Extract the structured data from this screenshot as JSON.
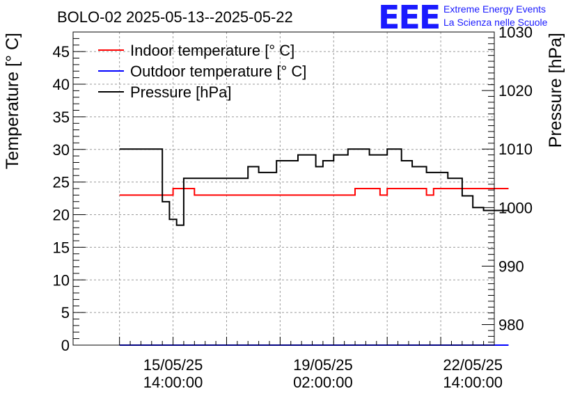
{
  "colors": {
    "background": "#ffffff",
    "indoor": "#ff0000",
    "outdoor": "#0000ff",
    "pressure": "#000000",
    "grid": "#9a9a9a",
    "logo": "#1a1aff"
  },
  "logo": {
    "mark": "EEE",
    "line1": "Extreme Energy Events",
    "line2": "La Scienza nelle Scuole"
  },
  "chart_data": {
    "type": "line",
    "title": "BOLO-02 2025-05-13--2025-05-22",
    "ylabel_left": "Temperature [° C]",
    "ylabel_right": "Pressure [hPa]",
    "xlabel": "",
    "grid": true,
    "legend_placement": "top-left",
    "ylim_left": [
      0,
      48
    ],
    "ylim_right": [
      976.5,
      1030
    ],
    "xlim": [
      "2025-05-13 06:00",
      "2025-05-23 02:00"
    ],
    "x_tick_positions": [
      "2025-05-14 08:00",
      "2025-05-15 14:00",
      "2025-05-16 20:00",
      "2025-05-18 02:00",
      "2025-05-19 08:00",
      "2025-05-20 14:00",
      "2025-05-21 20:00",
      "2025-05-23 02:00"
    ],
    "x_tick_labels": [
      {
        "at": "2025-05-15 14:00",
        "line1": "15/05/25",
        "line2": "14:00:00"
      },
      {
        "at": "2025-05-19 02:00",
        "line1": "19/05/25",
        "line2": "02:00:00"
      },
      {
        "at": "2025-05-22 14:00",
        "line1": "22/05/25",
        "line2": "14:00:00"
      }
    ],
    "y_left_ticks": [
      0,
      5,
      10,
      15,
      20,
      25,
      30,
      35,
      40,
      45
    ],
    "y_right_ticks": [
      980,
      990,
      1000,
      1010,
      1020,
      1030
    ],
    "series": [
      {
        "name": "Indoor temperature [° C]",
        "axis": "left",
        "color_key": "indoor",
        "step": true,
        "x": [
          "2025-05-14 08:00",
          "2025-05-15 14:00",
          "2025-05-16 02:00",
          "2025-05-18 20:00",
          "2025-05-19 08:00",
          "2025-05-19 20:00",
          "2025-05-20 10:00",
          "2025-05-20 14:00",
          "2025-05-21 12:00",
          "2025-05-21 16:00",
          "2025-05-23 10:00"
        ],
        "y": [
          23,
          24,
          23,
          23,
          23,
          24,
          23,
          24,
          23,
          24,
          24
        ]
      },
      {
        "name": "Outdoor temperature [° C]",
        "axis": "left",
        "color_key": "outdoor",
        "step": false,
        "x": [
          "2025-05-14 08:00",
          "2025-05-23 10:00"
        ],
        "y": [
          0,
          0
        ]
      },
      {
        "name": "Pressure [hPa]",
        "axis": "right",
        "color_key": "pressure",
        "step": true,
        "x": [
          "2025-05-14 08:00",
          "2025-05-15 08:00",
          "2025-05-15 12:00",
          "2025-05-15 16:00",
          "2025-05-15 20:00",
          "2025-05-16 00:00",
          "2025-05-16 02:00",
          "2025-05-16 08:00",
          "2025-05-17 08:00",
          "2025-05-17 14:00",
          "2025-05-17 20:00",
          "2025-05-18 00:00",
          "2025-05-18 12:00",
          "2025-05-18 22:00",
          "2025-05-19 02:00",
          "2025-05-19 08:00",
          "2025-05-19 16:00",
          "2025-05-20 04:00",
          "2025-05-20 14:00",
          "2025-05-20 22:00",
          "2025-05-21 04:00",
          "2025-05-21 12:00",
          "2025-05-21 18:00",
          "2025-05-22 00:00",
          "2025-05-22 08:00",
          "2025-05-22 14:00",
          "2025-05-22 20:00",
          "2025-05-23 10:00"
        ],
        "y": [
          1010,
          1001,
          998,
          997,
          1005,
          1005,
          1005,
          1005,
          1007,
          1006,
          1006,
          1008,
          1009,
          1007,
          1008,
          1009,
          1010,
          1009,
          1010,
          1008,
          1007,
          1006,
          1006,
          1005,
          1002,
          1000,
          999.5,
          1000
        ]
      }
    ]
  }
}
